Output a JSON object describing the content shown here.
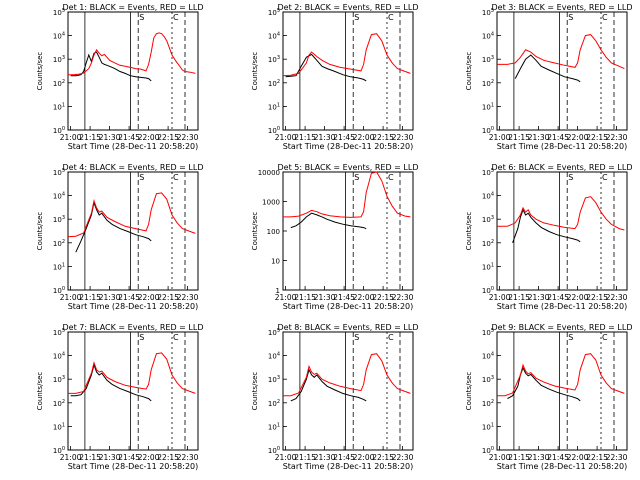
{
  "chart_data": [
    {
      "type": "line",
      "title": "Det 1: BLACK = Events, RED = LLD",
      "xlabel": "Start Time (28-Dec-11 20:58:20)",
      "ylabel": "Counts/sec",
      "x_ticks": [
        "21:00",
        "21:15",
        "21:30",
        "21:45",
        "22:00",
        "22:15",
        "22:30"
      ],
      "y_ticks": [
        "10^0",
        "10^1",
        "10^2",
        "10^3",
        "10^4",
        "10^5"
      ],
      "yscale": "log",
      "xlim_minutes": [
        0,
        100
      ],
      "ylim": [
        1,
        100000
      ],
      "series": [
        {
          "color": "#000000",
          "x": [
            2,
            4,
            6,
            8,
            10,
            12,
            14,
            16,
            18,
            20,
            22,
            24,
            26,
            28,
            30,
            32,
            34,
            36,
            40,
            44,
            48,
            52,
            56,
            60,
            62,
            64
          ],
          "y": [
            200,
            200,
            200,
            210,
            220,
            300,
            700,
            1500,
            800,
            1800,
            2000,
            1200,
            700,
            600,
            550,
            500,
            450,
            400,
            300,
            250,
            200,
            180,
            170,
            160,
            150,
            120
          ]
        },
        {
          "color": "#ff0000",
          "x": [
            0,
            4,
            8,
            12,
            16,
            18,
            20,
            22,
            24,
            26,
            28,
            30,
            32,
            36,
            40,
            44,
            48,
            52,
            56,
            60,
            62,
            64,
            66,
            68,
            70,
            72,
            74,
            76,
            78,
            80,
            82,
            84,
            86,
            88,
            90,
            94,
            98
          ],
          "y": [
            220,
            220,
            230,
            260,
            400,
            700,
            1500,
            2500,
            1800,
            1400,
            1600,
            1200,
            900,
            700,
            550,
            500,
            450,
            400,
            380,
            320,
            600,
            2000,
            8000,
            12000,
            13000,
            12000,
            9000,
            6000,
            3000,
            1500,
            1000,
            700,
            500,
            350,
            300,
            280,
            250
          ]
        }
      ],
      "markers": [
        "S",
        "C"
      ]
    },
    {
      "type": "line",
      "title": "Det 2: BLACK = Events, RED = LLD",
      "xlabel": "Start Time (28-Dec-11 20:58:20)",
      "ylabel": "Counts/sec",
      "x_ticks": [
        "21:00",
        "21:15",
        "21:30",
        "21:45",
        "22:00",
        "22:15",
        "22:30"
      ],
      "y_ticks": [
        "10^0",
        "10^1",
        "10^2",
        "10^3",
        "10^4",
        "10^5"
      ],
      "yscale": "log",
      "xlim_minutes": [
        0,
        100
      ],
      "ylim": [
        1,
        100000
      ],
      "series": [
        {
          "color": "#000000",
          "x": [
            2,
            6,
            10,
            14,
            18,
            22,
            26,
            30,
            34,
            40,
            46,
            52,
            58,
            62,
            64
          ],
          "y": [
            180,
            190,
            200,
            500,
            1200,
            1600,
            900,
            500,
            400,
            300,
            220,
            180,
            160,
            140,
            120
          ]
        },
        {
          "color": "#ff0000",
          "x": [
            0,
            6,
            12,
            18,
            20,
            22,
            26,
            30,
            36,
            44,
            52,
            60,
            62,
            64,
            68,
            72,
            76,
            80,
            84,
            88,
            94,
            98
          ],
          "y": [
            200,
            210,
            250,
            700,
            1500,
            2000,
            1300,
            900,
            600,
            450,
            380,
            320,
            600,
            2500,
            11000,
            12000,
            6000,
            1500,
            700,
            400,
            300,
            250
          ]
        }
      ],
      "markers": [
        "S",
        "C"
      ]
    },
    {
      "type": "line",
      "title": "Det 3: BLACK = Events, RED = LLD",
      "xlabel": "Start Time (28-Dec-11 20:58:20)",
      "ylabel": "Counts/sec",
      "x_ticks": [
        "21:00",
        "21:15",
        "21:30",
        "21:45",
        "22:00",
        "22:15",
        "22:30"
      ],
      "y_ticks": [
        "10^0",
        "10^1",
        "10^2",
        "10^3",
        "10^4",
        "10^5"
      ],
      "yscale": "log",
      "xlim_minutes": [
        0,
        100
      ],
      "ylim": [
        1,
        100000
      ],
      "series": [
        {
          "color": "#000000",
          "x": [
            14,
            18,
            22,
            26,
            30,
            34,
            40,
            46,
            52,
            58,
            62,
            64
          ],
          "y": [
            150,
            400,
            1000,
            1500,
            900,
            500,
            350,
            250,
            180,
            150,
            130,
            110
          ]
        },
        {
          "color": "#ff0000",
          "x": [
            0,
            8,
            14,
            18,
            22,
            26,
            30,
            36,
            44,
            52,
            60,
            62,
            64,
            68,
            72,
            76,
            80,
            84,
            88,
            94,
            98
          ],
          "y": [
            600,
            600,
            700,
            1200,
            2500,
            2000,
            1300,
            900,
            700,
            550,
            450,
            700,
            2500,
            10000,
            11000,
            6000,
            2500,
            1200,
            700,
            500,
            400
          ]
        }
      ],
      "markers": [
        "S",
        "C"
      ]
    },
    {
      "type": "line",
      "title": "Det 4: BLACK = Events, RED = LLD",
      "xlabel": "Start Time (28-Dec-11 20:58:20)",
      "ylabel": "Counts/sec",
      "x_ticks": [
        "21:00",
        "21:15",
        "21:30",
        "21:45",
        "22:00",
        "22:15",
        "22:30"
      ],
      "y_ticks": [
        "10^0",
        "10^1",
        "10^2",
        "10^3",
        "10^4",
        "10^5"
      ],
      "yscale": "log",
      "xlim_minutes": [
        0,
        100
      ],
      "ylim": [
        1,
        100000
      ],
      "series": [
        {
          "color": "#000000",
          "x": [
            6,
            10,
            14,
            18,
            20,
            22,
            24,
            26,
            30,
            34,
            40,
            46,
            52,
            58,
            62,
            64
          ],
          "y": [
            40,
            120,
            400,
            1500,
            5000,
            2500,
            1500,
            1800,
            900,
            600,
            400,
            300,
            220,
            180,
            150,
            120
          ]
        },
        {
          "color": "#ff0000",
          "x": [
            0,
            6,
            12,
            18,
            20,
            22,
            24,
            26,
            30,
            36,
            44,
            52,
            60,
            62,
            64,
            68,
            72,
            76,
            80,
            84,
            88,
            94,
            98
          ],
          "y": [
            180,
            190,
            260,
            1800,
            6000,
            3000,
            2000,
            2200,
            1200,
            800,
            500,
            400,
            320,
            600,
            2500,
            12000,
            13000,
            7000,
            1500,
            700,
            400,
            300,
            250
          ]
        }
      ],
      "markers": [
        "S",
        "C"
      ]
    },
    {
      "type": "line",
      "title": "Det 5: BLACK = Events, RED = LLD",
      "xlabel": "Start Time (28-Dec-11 20:58:20)",
      "ylabel": "Counts/sec",
      "x_ticks": [
        "21:00",
        "21:15",
        "21:30",
        "21:45",
        "22:00",
        "22:15",
        "22:30"
      ],
      "y_ticks": [
        "1",
        "10",
        "100",
        "1000",
        "10000"
      ],
      "yscale": "log",
      "xlim_minutes": [
        0,
        100
      ],
      "ylim": [
        1,
        10000
      ],
      "series": [
        {
          "color": "#000000",
          "x": [
            6,
            10,
            14,
            18,
            22,
            26,
            30,
            34,
            40,
            46,
            52,
            58,
            62,
            64
          ],
          "y": [
            130,
            150,
            200,
            300,
            400,
            350,
            300,
            250,
            200,
            170,
            150,
            140,
            130,
            120
          ]
        },
        {
          "color": "#ff0000",
          "x": [
            0,
            6,
            12,
            18,
            22,
            26,
            30,
            36,
            44,
            52,
            60,
            62,
            64,
            68,
            72,
            76,
            80,
            84,
            88,
            94,
            98
          ],
          "y": [
            300,
            300,
            320,
            400,
            500,
            450,
            380,
            330,
            300,
            290,
            300,
            450,
            2000,
            9000,
            10000,
            5000,
            1500,
            700,
            400,
            320,
            300
          ]
        }
      ],
      "markers": [
        "S",
        "C"
      ]
    },
    {
      "type": "line",
      "title": "Det 6: BLACK = Events, RED = LLD",
      "xlabel": "Start Time (28-Dec-11 20:58:20)",
      "ylabel": "Counts/sec",
      "x_ticks": [
        "21:00",
        "21:15",
        "21:30",
        "21:45",
        "22:00",
        "22:15",
        "22:30"
      ],
      "y_ticks": [
        "10^0",
        "10^1",
        "10^2",
        "10^3",
        "10^4",
        "10^5"
      ],
      "yscale": "log",
      "xlim_minutes": [
        0,
        100
      ],
      "ylim": [
        1,
        100000
      ],
      "series": [
        {
          "color": "#000000",
          "x": [
            12,
            16,
            18,
            20,
            22,
            24,
            26,
            30,
            34,
            40,
            46,
            52,
            58,
            62,
            64
          ],
          "y": [
            100,
            400,
            1200,
            2500,
            1500,
            1800,
            1200,
            700,
            450,
            300,
            220,
            180,
            150,
            130,
            110
          ]
        },
        {
          "color": "#ff0000",
          "x": [
            0,
            8,
            14,
            18,
            20,
            22,
            24,
            26,
            30,
            36,
            44,
            52,
            60,
            62,
            64,
            68,
            72,
            76,
            80,
            84,
            88,
            94,
            98
          ],
          "y": [
            500,
            500,
            700,
            1500,
            3000,
            2000,
            2500,
            1500,
            1000,
            700,
            550,
            450,
            400,
            600,
            2000,
            8000,
            9000,
            5000,
            2000,
            1000,
            600,
            400,
            350
          ]
        }
      ],
      "markers": [
        "S",
        "C"
      ]
    },
    {
      "type": "line",
      "title": "Det 7: BLACK = Events, RED = LLD",
      "xlabel": "Start Time (28-Dec-11 20:58:20)",
      "ylabel": "Counts/sec",
      "x_ticks": [
        "21:00",
        "21:15",
        "21:30",
        "21:45",
        "22:00",
        "22:15",
        "22:30"
      ],
      "y_ticks": [
        "10^0",
        "10^1",
        "10^2",
        "10^3",
        "10^4",
        "10^5"
      ],
      "yscale": "log",
      "xlim_minutes": [
        0,
        100
      ],
      "ylim": [
        1,
        100000
      ],
      "series": [
        {
          "color": "#000000",
          "x": [
            2,
            6,
            10,
            14,
            18,
            20,
            22,
            24,
            26,
            30,
            34,
            40,
            46,
            52,
            58,
            62,
            64
          ],
          "y": [
            200,
            200,
            220,
            400,
            1500,
            4000,
            2000,
            1500,
            1800,
            900,
            600,
            400,
            300,
            220,
            180,
            150,
            120
          ]
        },
        {
          "color": "#ff0000",
          "x": [
            0,
            6,
            12,
            18,
            20,
            22,
            24,
            26,
            30,
            36,
            44,
            52,
            60,
            62,
            64,
            68,
            72,
            76,
            80,
            84,
            88,
            94,
            98
          ],
          "y": [
            250,
            250,
            300,
            1800,
            5000,
            2500,
            2000,
            2200,
            1200,
            800,
            550,
            450,
            380,
            600,
            2500,
            12000,
            13000,
            7000,
            1500,
            700,
            400,
            300,
            250
          ]
        }
      ],
      "markers": [
        "S",
        "C"
      ]
    },
    {
      "type": "line",
      "title": "Det 8: BLACK = Events, RED = LLD",
      "xlabel": "Start Time (28-Dec-11 20:58:20)",
      "ylabel": "Counts/sec",
      "x_ticks": [
        "21:00",
        "21:15",
        "21:30",
        "21:45",
        "22:00",
        "22:15",
        "22:30"
      ],
      "y_ticks": [
        "10^0",
        "10^1",
        "10^2",
        "10^3",
        "10^4",
        "10^5"
      ],
      "yscale": "log",
      "xlim_minutes": [
        0,
        100
      ],
      "ylim": [
        1,
        100000
      ],
      "series": [
        {
          "color": "#000000",
          "x": [
            6,
            10,
            14,
            18,
            20,
            22,
            24,
            26,
            30,
            34,
            40,
            46,
            52,
            58,
            62,
            64
          ],
          "y": [
            120,
            150,
            300,
            1000,
            2500,
            1500,
            1200,
            1500,
            800,
            500,
            350,
            250,
            200,
            170,
            140,
            120
          ]
        },
        {
          "color": "#ff0000",
          "x": [
            0,
            6,
            12,
            18,
            20,
            22,
            24,
            26,
            30,
            36,
            44,
            52,
            60,
            62,
            64,
            68,
            72,
            76,
            80,
            84,
            88,
            94,
            98
          ],
          "y": [
            200,
            200,
            260,
            1200,
            3500,
            2000,
            1600,
            1800,
            1000,
            700,
            500,
            400,
            330,
            600,
            2500,
            11000,
            12000,
            6000,
            1500,
            700,
            400,
            300,
            250
          ]
        }
      ],
      "markers": [
        "S",
        "C"
      ]
    },
    {
      "type": "line",
      "title": "Det 9: BLACK = Events, RED = LLD",
      "xlabel": "Start Time (28-Dec-11 20:58:20)",
      "ylabel": "Counts/sec",
      "x_ticks": [
        "21:00",
        "21:15",
        "21:30",
        "21:45",
        "22:00",
        "22:15",
        "22:30"
      ],
      "y_ticks": [
        "10^0",
        "10^1",
        "10^2",
        "10^3",
        "10^4",
        "10^5"
      ],
      "yscale": "log",
      "xlim_minutes": [
        0,
        100
      ],
      "ylim": [
        1,
        100000
      ],
      "series": [
        {
          "color": "#000000",
          "x": [
            8,
            12,
            16,
            18,
            20,
            22,
            24,
            26,
            30,
            34,
            40,
            46,
            52,
            58,
            62,
            64
          ],
          "y": [
            150,
            200,
            500,
            1500,
            3000,
            1800,
            1400,
            1600,
            900,
            550,
            380,
            280,
            220,
            180,
            150,
            120
          ]
        },
        {
          "color": "#ff0000",
          "x": [
            0,
            6,
            12,
            18,
            20,
            22,
            24,
            26,
            30,
            36,
            44,
            52,
            60,
            62,
            64,
            68,
            72,
            76,
            80,
            84,
            88,
            94,
            98
          ],
          "y": [
            200,
            200,
            260,
            1500,
            4000,
            2200,
            1700,
            1900,
            1100,
            750,
            520,
            420,
            350,
            600,
            2500,
            11000,
            12000,
            6500,
            1500,
            700,
            400,
            300,
            250
          ]
        }
      ],
      "markers": [
        "S",
        "C"
      ]
    }
  ]
}
